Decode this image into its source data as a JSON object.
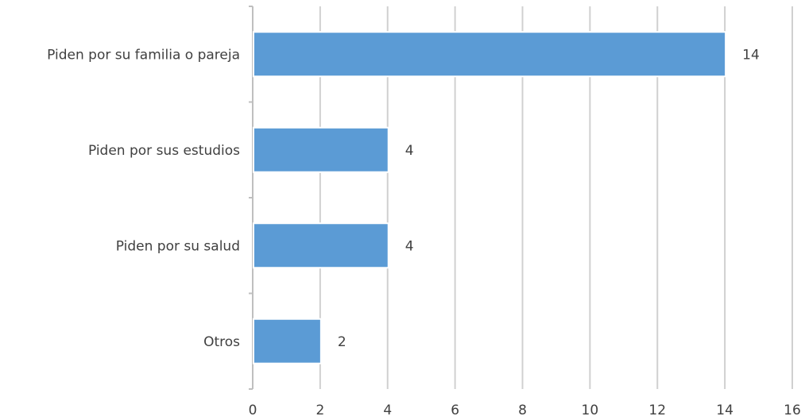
{
  "chart_data": {
    "type": "bar",
    "orientation": "horizontal",
    "title": "",
    "xlabel": "",
    "ylabel": "",
    "categories": [
      "Piden por su familia o pareja",
      "Piden por sus estudios",
      "Piden por su salud",
      "Otros"
    ],
    "values": [
      14,
      4,
      4,
      2
    ],
    "data_labels": [
      "14",
      "4",
      "4",
      "2"
    ],
    "xlim": [
      0,
      16
    ],
    "x_ticks": [
      0,
      2,
      4,
      6,
      8,
      10,
      12,
      14,
      16
    ],
    "x_tick_labels": [
      "0",
      "2",
      "4",
      "6",
      "8",
      "10",
      "12",
      "14",
      "16"
    ],
    "grid": "vertical",
    "legend": "none",
    "colors": {
      "bar": "#5b9bd5",
      "grid": "#d0d0d0",
      "axis": "#bfbfbf",
      "text": "#404040"
    }
  }
}
